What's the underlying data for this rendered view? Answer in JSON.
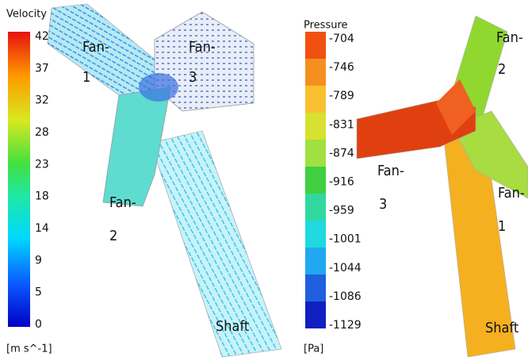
{
  "panels": [
    {
      "colorbar": {
        "title": "Velocity",
        "ticks": [
          42,
          37,
          32,
          28,
          23,
          18,
          14,
          9,
          5,
          0
        ],
        "unit": "[m s^-1]"
      },
      "labels": [
        "Fan-",
        "1",
        "Fan-",
        "3",
        "Fan-",
        "2",
        "Shaft"
      ]
    },
    {
      "colorbar": {
        "title": "Pressure",
        "ticks": [
          -704,
          -746,
          -789,
          -831,
          -874,
          -916,
          -959,
          -1001,
          -1044,
          -1086,
          -1129
        ],
        "unit": "[Pa]"
      },
      "labels": [
        "Fan-",
        "2",
        "Fan-",
        "3",
        "Fan-",
        "1",
        "Shaft"
      ]
    }
  ]
}
